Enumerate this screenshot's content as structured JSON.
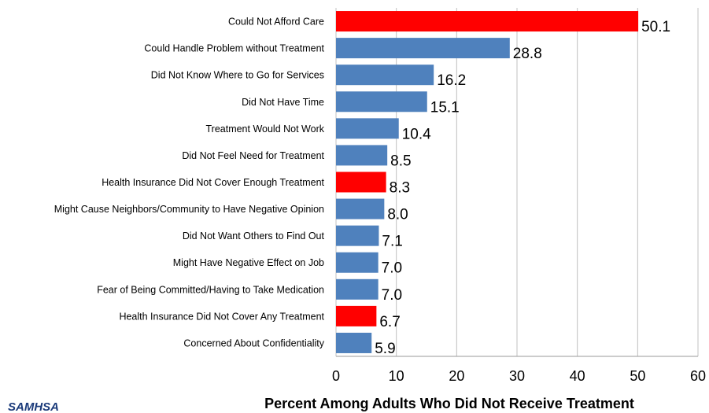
{
  "chart_data": {
    "type": "bar",
    "orientation": "horizontal",
    "categories": [
      "Could Not Afford Care",
      "Could Handle Problem without Treatment",
      "Did Not Know Where to Go for Services",
      "Did Not Have Time",
      "Treatment Would Not Work",
      "Did Not Feel Need for Treatment",
      "Health Insurance Did Not Cover Enough Treatment",
      "Might Cause Neighbors/Community to Have Negative Opinion",
      "Did Not Want Others to Find Out",
      "Might Have Negative Effect on Job",
      "Fear of Being Committed/Having to Take Medication",
      "Health Insurance Did Not Cover Any Treatment",
      "Concerned About Confidentiality"
    ],
    "values": [
      50.1,
      28.8,
      16.2,
      15.1,
      10.4,
      8.5,
      8.3,
      8.0,
      7.1,
      7.0,
      7.0,
      6.7,
      5.9
    ],
    "value_labels": [
      "50.1",
      "28.8",
      "16.2",
      "15.1",
      "10.4",
      "8.5",
      "8.3",
      "8.0",
      "7.1",
      "7.0",
      "7.0",
      "6.7",
      "5.9"
    ],
    "highlighted": [
      true,
      false,
      false,
      false,
      false,
      false,
      true,
      false,
      false,
      false,
      false,
      true,
      false
    ],
    "colors": {
      "highlight": "#ff0000",
      "default": "#4f81bd",
      "grid": "#c0c0c0"
    },
    "xlim": [
      0,
      60
    ],
    "xticks": [
      0,
      10,
      20,
      30,
      40,
      50,
      60
    ],
    "xtick_labels": [
      "0",
      "10",
      "20",
      "30",
      "40",
      "50",
      "60"
    ],
    "xlabel": "Percent Among Adults Who Did Not Receive Treatment",
    "ylabel": "",
    "title": "",
    "grid": true
  },
  "logo": {
    "text": "SAMHSA"
  }
}
